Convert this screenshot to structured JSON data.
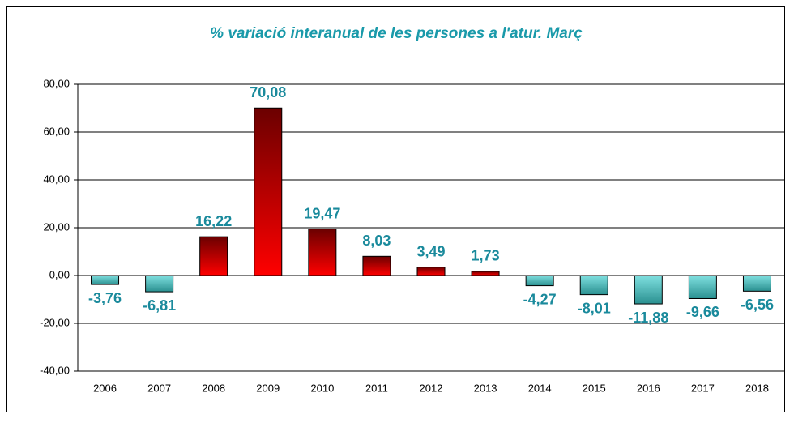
{
  "chart_data": {
    "type": "bar",
    "title": "% variació interanual de les persones a l'atur. Març",
    "categories": [
      "2006",
      "2007",
      "2008",
      "2009",
      "2010",
      "2011",
      "2012",
      "2013",
      "2014",
      "2015",
      "2016",
      "2017",
      "2018"
    ],
    "values": [
      -3.76,
      -6.81,
      16.22,
      70.08,
      19.47,
      8.03,
      3.49,
      1.73,
      -4.27,
      -8.01,
      -11.88,
      -9.66,
      -6.56
    ],
    "value_labels": [
      "-3,76",
      "-6,81",
      "16,22",
      "70,08",
      "19,47",
      "8,03",
      "3,49",
      "1,73",
      "-4,27",
      "-8,01",
      "-11,88",
      "-9,66",
      "-6,56"
    ],
    "color": "#ff0000",
    "negative_color": "#2a9090",
    "ylim": [
      -40,
      80
    ],
    "yticks": [
      {
        "value": -40,
        "label": "-40,00"
      },
      {
        "value": -20,
        "label": "-20,00"
      },
      {
        "value": 0,
        "label": "0,00"
      },
      {
        "value": 20,
        "label": "20,00"
      },
      {
        "value": 40,
        "label": "40,00"
      },
      {
        "value": 60,
        "label": "60,00"
      },
      {
        "value": 80,
        "label": "80,00"
      }
    ],
    "grid": true
  }
}
